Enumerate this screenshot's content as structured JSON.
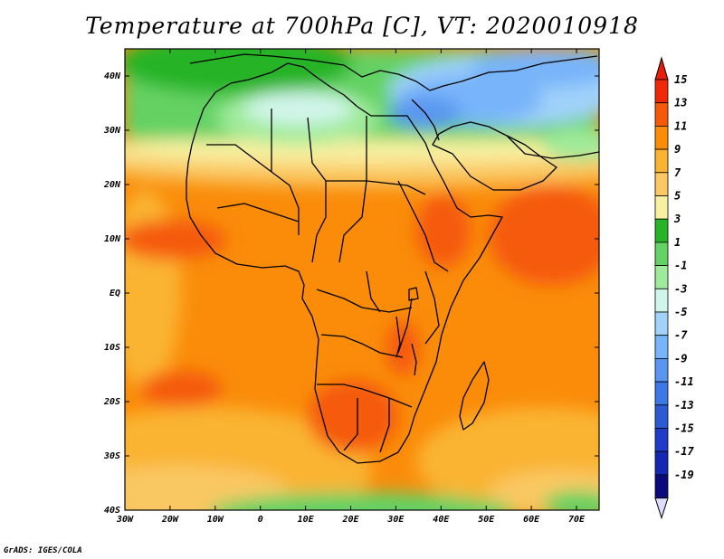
{
  "title": "Temperature at 700hPa [C], VT: 2020010918",
  "credit": "GrADS: IGES/COLA",
  "map": {
    "projection": "lat-lon",
    "lon_range": [
      -30,
      75
    ],
    "lat_range": [
      -40,
      45
    ],
    "lat_labels": [
      {
        "lat": 40,
        "label": "40N"
      },
      {
        "lat": 30,
        "label": "30N"
      },
      {
        "lat": 20,
        "label": "20N"
      },
      {
        "lat": 10,
        "label": "10N"
      },
      {
        "lat": 0,
        "label": "EQ"
      },
      {
        "lat": -10,
        "label": "10S"
      },
      {
        "lat": -20,
        "label": "20S"
      },
      {
        "lat": -30,
        "label": "30S"
      },
      {
        "lat": -40,
        "label": "40S"
      }
    ],
    "lon_labels": [
      {
        "lon": -30,
        "label": "30W"
      },
      {
        "lon": -20,
        "label": "20W"
      },
      {
        "lon": -10,
        "label": "10W"
      },
      {
        "lon": 0,
        "label": "0"
      },
      {
        "lon": 10,
        "label": "10E"
      },
      {
        "lon": 20,
        "label": "20E"
      },
      {
        "lon": 30,
        "label": "30E"
      },
      {
        "lon": 40,
        "label": "40E"
      },
      {
        "lon": 50,
        "label": "50E"
      },
      {
        "lon": 60,
        "label": "60E"
      },
      {
        "lon": 70,
        "label": "70E"
      }
    ],
    "variable": "Temperature at 700hPa [C]",
    "valid_time": "2020010918"
  },
  "colorbar": {
    "labels": [
      "15",
      "13",
      "11",
      "9",
      "7",
      "5",
      "3",
      "1",
      "-1",
      "-3",
      "-5",
      "-7",
      "-9",
      "-11",
      "-13",
      "-15",
      "-17",
      "-19"
    ],
    "colors": [
      "#f0280a",
      "#f55a0a",
      "#fa8c0a",
      "#fab432",
      "#fac864",
      "#f8f0a0",
      "#28b428",
      "#64d264",
      "#a0eb9b",
      "#d2f5eb",
      "#a0d2fa",
      "#78b4fa",
      "#5a96f0",
      "#3c78e6",
      "#2d5ad2",
      "#1e3cc8",
      "#1428b4",
      "#0a0a78"
    ],
    "top_arrow_color": "#e61e0a",
    "bottom_arrow_color": "#dcdcff"
  }
}
